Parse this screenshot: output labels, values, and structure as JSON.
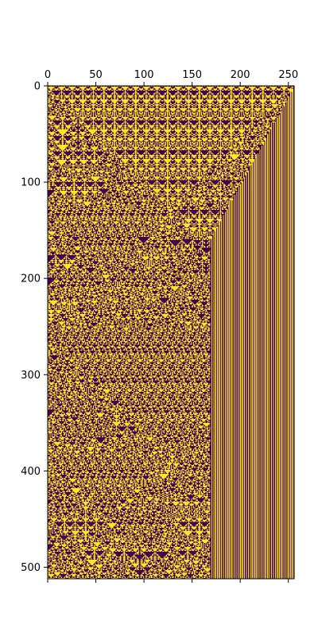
{
  "chart_data": {
    "type": "heatmap",
    "title": "",
    "xlabel": "",
    "ylabel": "",
    "rows": 512,
    "cols": 256,
    "xlim": [
      0,
      256
    ],
    "ylim": [
      512,
      0
    ],
    "x_axis_position": "top-and-bottom",
    "x_ticks": [
      0,
      50,
      100,
      150,
      200,
      250
    ],
    "x_tick_labels": [
      "0",
      "50",
      "100",
      "150",
      "200",
      "250"
    ],
    "y_ticks": [
      0,
      100,
      200,
      300,
      400,
      500
    ],
    "y_tick_labels": [
      "0",
      "100",
      "200",
      "300",
      "400",
      "500"
    ],
    "grid": false,
    "legend": "none",
    "colormap": "viridis",
    "color_low": "#440154",
    "color_high": "#fde725",
    "values": [
      0,
      1
    ],
    "pattern": "binary cellular automaton evolution, rule 150 style"
  }
}
